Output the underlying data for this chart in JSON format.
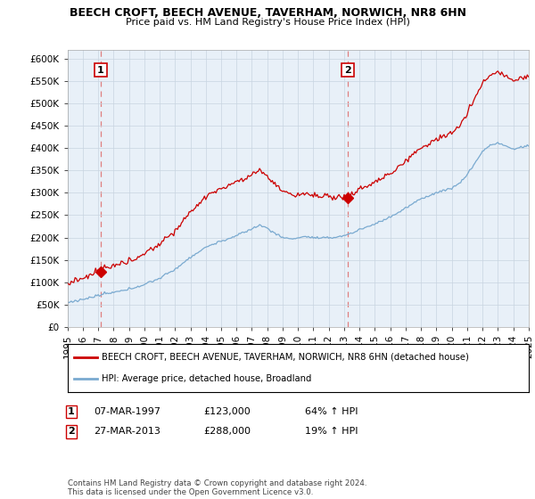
{
  "title": "BEECH CROFT, BEECH AVENUE, TAVERHAM, NORWICH, NR8 6HN",
  "subtitle": "Price paid vs. HM Land Registry's House Price Index (HPI)",
  "legend_property": "BEECH CROFT, BEECH AVENUE, TAVERHAM, NORWICH, NR8 6HN (detached house)",
  "legend_hpi": "HPI: Average price, detached house, Broadland",
  "footnote": "Contains HM Land Registry data © Crown copyright and database right 2024.\nThis data is licensed under the Open Government Licence v3.0.",
  "xlim": [
    1995,
    2025
  ],
  "ylim": [
    0,
    620000
  ],
  "yticks": [
    0,
    50000,
    100000,
    150000,
    200000,
    250000,
    300000,
    350000,
    400000,
    450000,
    500000,
    550000,
    600000
  ],
  "ytick_labels": [
    "£0",
    "£50K",
    "£100K",
    "£150K",
    "£200K",
    "£250K",
    "£300K",
    "£350K",
    "£400K",
    "£450K",
    "£500K",
    "£550K",
    "£600K"
  ],
  "xticks": [
    1995,
    1996,
    1997,
    1998,
    1999,
    2000,
    2001,
    2002,
    2003,
    2004,
    2005,
    2006,
    2007,
    2008,
    2009,
    2010,
    2011,
    2012,
    2013,
    2014,
    2015,
    2016,
    2017,
    2018,
    2019,
    2020,
    2021,
    2022,
    2023,
    2024,
    2025
  ],
  "sale1_x": 1997.17,
  "sale1_y": 123000,
  "sale1_label": "1",
  "sale1_date": "07-MAR-1997",
  "sale1_price": "£123,000",
  "sale1_hpi": "64% ↑ HPI",
  "sale2_x": 2013.23,
  "sale2_y": 288000,
  "sale2_label": "2",
  "sale2_date": "27-MAR-2013",
  "sale2_price": "£288,000",
  "sale2_hpi": "19% ↑ HPI",
  "property_color": "#cc0000",
  "hpi_color": "#7aaad0",
  "background_color": "#e8f0f8",
  "grid_color": "#c8d4e0",
  "dashed_line_color": "#e08080"
}
